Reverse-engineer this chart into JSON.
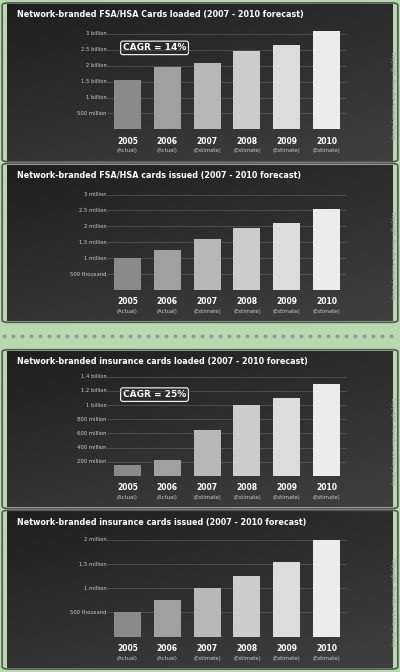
{
  "charts": [
    {
      "title": "Network-branded FSA/HSA Cards loaded (2007 - 2010 forecast)",
      "cagr": "CAGR = 14%",
      "years": [
        "2005",
        "2006",
        "2007",
        "2008",
        "2009",
        "2010"
      ],
      "sublabels": [
        "(Actual)",
        "(Actual)",
        "(Estimate)",
        "(Estimate)",
        "(Estimate)",
        "(Estimate)"
      ],
      "values": [
        1.55,
        1.95,
        2.1,
        2.45,
        2.65,
        3.1
      ],
      "yticks": [
        0.5,
        1.0,
        1.5,
        2.0,
        2.5,
        3.0
      ],
      "ylabels": [
        "500 million",
        "1 billion",
        "1.5 billion",
        "2 billion",
        "2.5 billion",
        "3 billion"
      ],
      "ymax": 3.35,
      "ymin": 0
    },
    {
      "title": "Network-branded FSA/HSA cards issued (2007 - 2010 forecast)",
      "cagr": null,
      "years": [
        "2005",
        "2006",
        "2007",
        "2008",
        "2009",
        "2010"
      ],
      "sublabels": [
        "(Actual)",
        "(Actual)",
        "(Estimate)",
        "(Estimate)",
        "(Estimate)",
        "(Estimate)"
      ],
      "values": [
        1.0,
        1.25,
        1.6,
        1.95,
        2.1,
        2.55
      ],
      "yticks": [
        0.5,
        1.0,
        1.5,
        2.0,
        2.5,
        3.0
      ],
      "ylabels": [
        "500 thousand",
        "1 million",
        "1.5 million",
        "2 million",
        "2.5 million",
        "3 million"
      ],
      "ymax": 3.35,
      "ymin": 0
    },
    {
      "title": "Network-branded insurance cards loaded (2007 - 2010 forecast)",
      "cagr": "CAGR = 25%",
      "years": [
        "2005",
        "2006",
        "2007",
        "2008",
        "2009",
        "2010"
      ],
      "sublabels": [
        "(Actual)",
        "(Actual)",
        "(Estimate)",
        "(Estimate)",
        "(Estimate)",
        "(Estimate)"
      ],
      "values": [
        0.15,
        0.22,
        0.65,
        1.0,
        1.1,
        1.3
      ],
      "yticks": [
        0.2,
        0.4,
        0.6,
        0.8,
        1.0,
        1.2,
        1.4
      ],
      "ylabels": [
        "200 million",
        "400 million",
        "600 million",
        "800 million",
        "1 billion",
        "1.2 billion",
        "1.4 billion"
      ],
      "ymax": 1.5,
      "ymin": 0
    },
    {
      "title": "Network-branded insurance cards issued (2007 - 2010 forecast)",
      "cagr": null,
      "years": [
        "2005",
        "2006",
        "2007",
        "2008",
        "2009",
        "2010"
      ],
      "sublabels": [
        "(Actual)",
        "(Actual)",
        "(Estimate)",
        "(Estimate)",
        "(Estimate)",
        "(Estimate)"
      ],
      "values": [
        0.5,
        0.75,
        1.0,
        1.25,
        1.55,
        2.0
      ],
      "yticks": [
        0.5,
        1.0,
        1.5,
        2.0
      ],
      "ylabels": [
        "500 thousand",
        "1 million",
        "1.5 million",
        "2 million"
      ],
      "ymax": 2.2,
      "ymin": 0
    }
  ],
  "bg_outer": "#b8d8b0",
  "copyright": "Copyright: Mercator Advisory Group",
  "grid_color": "#666666",
  "dot_sep_color": "#999999"
}
